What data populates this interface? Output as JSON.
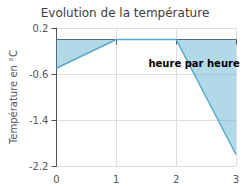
{
  "chart_data": {
    "type": "area",
    "title": "Evolution de la température",
    "ylabel": "Température en °C",
    "annotations": [
      {
        "text": "heure par heure",
        "x": 2.3,
        "y": -0.42
      }
    ],
    "x": [
      0,
      1,
      2,
      3
    ],
    "values": [
      -0.5,
      0.0,
      0.0,
      -2.0
    ],
    "color": "#55aacc",
    "xlim": [
      0,
      3
    ],
    "ylim": [
      -2.2,
      0.2
    ],
    "xticks": [
      0,
      1,
      2,
      3
    ],
    "yticks": [
      0.2,
      -0.6,
      -1.4,
      -2.2
    ],
    "grid": true
  }
}
